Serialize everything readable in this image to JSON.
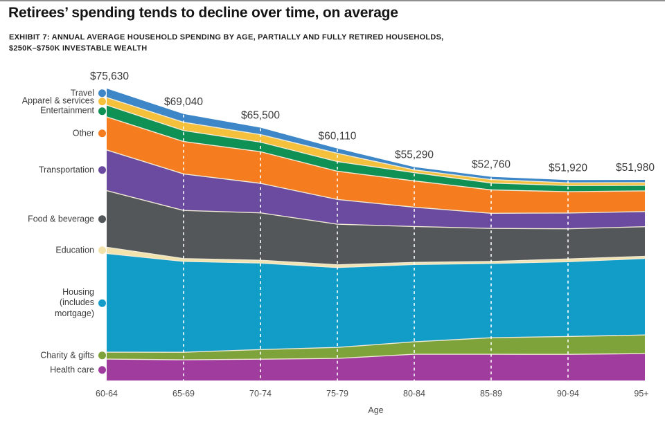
{
  "page": {
    "title": "Retirees’ spending tends to decline over time, on average",
    "exhibit_line1": "EXHIBIT 7: ANNUAL AVERAGE HOUSEHOLD SPENDING BY AGE, PARTIALLY AND FULLY RETIRED HOUSEHOLDS,",
    "exhibit_line2": "$250K–$750K INVESTABLE WEALTH"
  },
  "chart_data": {
    "type": "area",
    "stacked": true,
    "title": "Retirees’ spending tends to decline over time, on average",
    "subtitle": "EXHIBIT 7: ANNUAL AVERAGE HOUSEHOLD SPENDING BY AGE, PARTIALLY AND FULLY RETIRED HOUSEHOLDS, $250K–$750K INVESTABLE WEALTH",
    "x": [
      "60-64",
      "65-69",
      "70-74",
      "75-79",
      "80-84",
      "85-89",
      "90-94",
      "95+"
    ],
    "xlabel": "Age",
    "ylim": [
      0,
      75630
    ],
    "grid": "dashed-vertical-white",
    "legend_position": "left",
    "totals": [
      75630,
      69040,
      65500,
      60110,
      55290,
      52760,
      51920,
      51980
    ],
    "total_labels": [
      "$75,630",
      "$69,040",
      "$65,500",
      "$60,110",
      "$55,290",
      "$52,760",
      "$51,920",
      "$51,980"
    ],
    "series": [
      {
        "name": "Health care",
        "legend_lines": [
          "Health care"
        ],
        "color": "#a03c9e",
        "values": [
          5540,
          5350,
          5520,
          5720,
          6800,
          6790,
          6770,
          6970
        ]
      },
      {
        "name": "Charity & gifts",
        "legend_lines": [
          "Charity & gifts"
        ],
        "color": "#7fa33b",
        "values": [
          1790,
          1960,
          2490,
          2850,
          3220,
          4280,
          4620,
          4820
        ]
      },
      {
        "name": "Housing (includes mortgage)",
        "legend_lines": [
          "Housing",
          "(includes",
          "mortgage)"
        ],
        "color": "#129dc9",
        "values": [
          25570,
          23550,
          22430,
          20690,
          20030,
          19250,
          19380,
          19830
        ]
      },
      {
        "name": "Education",
        "legend_lines": [
          "Education"
        ],
        "color": "#f2e2ab",
        "values": [
          1610,
          710,
          710,
          710,
          540,
          530,
          710,
          540
        ]
      },
      {
        "name": "Food & beverage",
        "legend_lines": [
          "Food & beverage"
        ],
        "color": "#54575a",
        "values": [
          14660,
          12490,
          12280,
          10520,
          9300,
          8550,
          7820,
          7680
        ]
      },
      {
        "name": "Transportation",
        "legend_lines": [
          "Transportation"
        ],
        "color": "#6a4b9f",
        "values": [
          10550,
          9460,
          7650,
          6420,
          5010,
          3920,
          4090,
          3930
        ]
      },
      {
        "name": "Other",
        "legend_lines": [
          "Other"
        ],
        "color": "#f57d20",
        "values": [
          8580,
          8390,
          8190,
          7310,
          6800,
          6060,
          5510,
          5360
        ]
      },
      {
        "name": "Entertainment",
        "legend_lines": [
          "Entertainment"
        ],
        "color": "#0f9156",
        "values": [
          3040,
          2850,
          2490,
          2500,
          2150,
          1780,
          1600,
          1430
        ]
      },
      {
        "name": "Apparel & services",
        "legend_lines": [
          "Apparel & services"
        ],
        "color": "#f5c13d",
        "values": [
          1970,
          2140,
          1960,
          2140,
          720,
          890,
          710,
          710
        ]
      },
      {
        "name": "Travel",
        "legend_lines": [
          "Travel"
        ],
        "color": "#3d87c8",
        "values": [
          2320,
          2140,
          1780,
          1250,
          720,
          710,
          710,
          710
        ]
      }
    ],
    "style": {
      "boundary_stroke": "#f0ead6",
      "gridline_color": "#ffffff",
      "value_label_color": "#3b3b3b",
      "axis_label_color": "#4c4c4c"
    }
  }
}
